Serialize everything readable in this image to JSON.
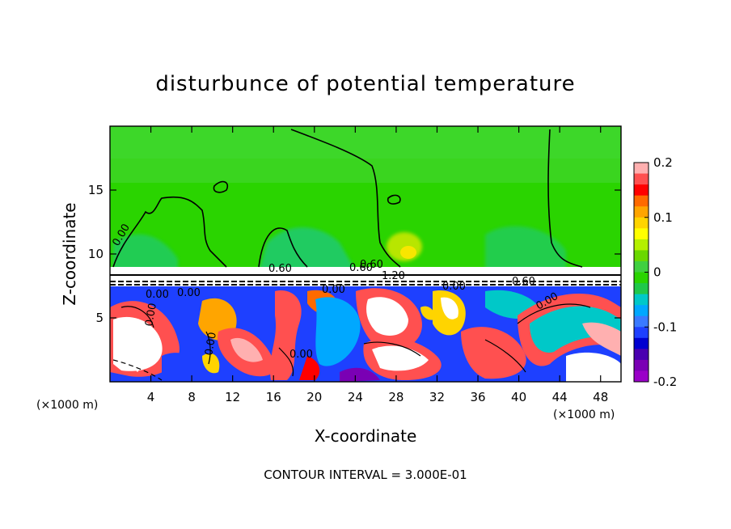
{
  "chart_data": {
    "type": "heatmap",
    "title": "disturbunce of potential temperature",
    "xlabel": "X-coordinate",
    "ylabel": "Z-coordinate",
    "x_unit": "(×1000 m)",
    "z_unit": "(×1000 m)",
    "xlim": [
      0,
      50
    ],
    "ylim": [
      0,
      20
    ],
    "x_ticks": [
      4,
      8,
      12,
      16,
      20,
      24,
      28,
      32,
      36,
      40,
      44,
      48
    ],
    "y_ticks": [
      5,
      10,
      15
    ],
    "colorbar": {
      "range": [
        -0.2,
        0.2
      ],
      "labels": [
        "0.2",
        "0.1",
        "0",
        "-0.1",
        "-0.2"
      ],
      "label_values": [
        0.2,
        0.1,
        0,
        -0.1,
        -0.2
      ],
      "colors": [
        "#ffb0b0",
        "#ff5050",
        "#ff0000",
        "#ff6a00",
        "#ffa500",
        "#ffd400",
        "#ffff00",
        "#b4f000",
        "#6ad800",
        "#40d040",
        "#2ad400",
        "#1fc84a",
        "#00c8c8",
        "#00a8ff",
        "#3a7aff",
        "#1e40ff",
        "#0000d0",
        "#4a00b0",
        "#7a00b4",
        "#9a00c8"
      ]
    },
    "contour_labels": [
      "0.00",
      "0.60",
      "0.60",
      "0.60",
      "0.00",
      "0.00",
      "0.00",
      "0.00",
      "0.60",
      "0.00",
      "1.20",
      "0.00",
      "0.00",
      "0.00"
    ],
    "note": "CONTOUR INTERVAL = 3.000E-01"
  }
}
